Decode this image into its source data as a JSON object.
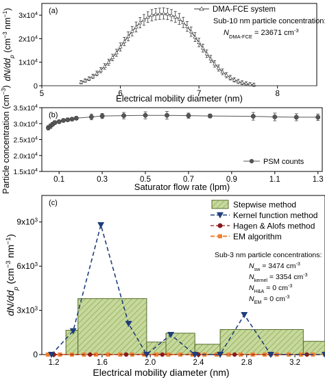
{
  "chart_data": [
    {
      "type": "line",
      "panel_label": "(a)",
      "xlabel": "Electrical mobility diameter (nm)",
      "ylabel_main": "dN/dd",
      "ylabel_sub": "p",
      "ylabel_unit": " (cm",
      "ylabel_unit_sup1": "−3",
      "ylabel_unit_mid": " nm",
      "ylabel_unit_sup2": "−1",
      "ylabel_unit_end": ")",
      "xlim": [
        5,
        8.5
      ],
      "ylim": [
        0,
        35000
      ],
      "xticks": [
        5,
        6,
        7,
        8
      ],
      "ytick_labels": [
        {
          "v": 0,
          "base": "0",
          "exp": ""
        },
        {
          "v": 10000,
          "base": "1x10",
          "exp": "4"
        },
        {
          "v": 20000,
          "base": "2x10",
          "exp": "4"
        },
        {
          "v": 30000,
          "base": "3x10",
          "exp": "4"
        }
      ],
      "legend": "DMA-FCE system",
      "annotation_line1": "Sub-10 nm particle concentration:",
      "annotation_var": "N",
      "annotation_sub": "DMA-FCE",
      "annotation_value": " = 23671 cm",
      "annotation_sup": "-3",
      "series": [
        {
          "name": "DMA-FCE system",
          "x": [
            5.5,
            5.55,
            5.6,
            5.65,
            5.7,
            5.75,
            5.8,
            5.85,
            5.9,
            5.95,
            6.0,
            6.05,
            6.1,
            6.15,
            6.2,
            6.25,
            6.3,
            6.35,
            6.4,
            6.45,
            6.5,
            6.55,
            6.6,
            6.65,
            6.7,
            6.75,
            6.8,
            6.85,
            6.9,
            6.95,
            7.0,
            7.05,
            7.1,
            7.15,
            7.2,
            7.25,
            7.3,
            7.35,
            7.4,
            7.45,
            7.5,
            7.55,
            7.6,
            7.65,
            7.7
          ],
          "y": [
            1500,
            2200,
            3000,
            4000,
            5200,
            6600,
            8200,
            10000,
            12000,
            14000,
            16500,
            18800,
            21000,
            23200,
            25000,
            26800,
            28000,
            29200,
            30000,
            30400,
            30600,
            30700,
            30500,
            30000,
            29300,
            28400,
            26900,
            25200,
            23000,
            20700,
            18400,
            16000,
            13600,
            11400,
            9300,
            7500,
            5900,
            4500,
            3400,
            2500,
            1800,
            1300,
            900,
            600,
            400
          ],
          "err": [
            700,
            700,
            800,
            900,
            1000,
            1100,
            1200,
            1300,
            1400,
            1500,
            1700,
            1800,
            1900,
            2000,
            2100,
            2200,
            2300,
            2300,
            2400,
            2400,
            2400,
            2400,
            2400,
            2400,
            2300,
            2300,
            2200,
            2100,
            2000,
            1900,
            1800,
            1700,
            1600,
            1500,
            1400,
            1300,
            1200,
            1100,
            1000,
            900,
            900,
            800,
            800,
            700,
            700
          ]
        }
      ]
    },
    {
      "type": "line",
      "panel_label": "(b)",
      "xlabel": "Saturator flow rate (lpm)",
      "ylabel": "Particle concentration (cm",
      "ylabel_sup": "−3",
      "ylabel_end": ")",
      "xlim": [
        0.02,
        1.32
      ],
      "ylim": [
        15000,
        35000
      ],
      "xticks": [
        0.1,
        0.3,
        0.5,
        0.7,
        0.9,
        1.1,
        1.3
      ],
      "ytick_labels": [
        {
          "v": 15000,
          "base": "1.5x10",
          "exp": "4"
        },
        {
          "v": 20000,
          "base": "2.0x10",
          "exp": "4"
        },
        {
          "v": 25000,
          "base": "2.5x10",
          "exp": "4"
        },
        {
          "v": 30000,
          "base": "3.0x10",
          "exp": "4"
        },
        {
          "v": 35000,
          "base": "3.5x10",
          "exp": "4"
        }
      ],
      "legend": "PSM counts",
      "series": [
        {
          "name": "PSM counts",
          "x": [
            0.05,
            0.06,
            0.07,
            0.08,
            0.1,
            0.12,
            0.14,
            0.16,
            0.18,
            0.25,
            0.3,
            0.4,
            0.5,
            0.6,
            0.7,
            0.8,
            1.0,
            1.1,
            1.2,
            1.3
          ],
          "y": [
            28700,
            29200,
            29800,
            30300,
            30600,
            31000,
            31200,
            31400,
            31700,
            32100,
            32400,
            32500,
            32600,
            32600,
            32500,
            32400,
            32300,
            32100,
            32000,
            32000
          ],
          "err": [
            700,
            700,
            600,
            600,
            500,
            500,
            500,
            500,
            500,
            900,
            800,
            1000,
            1100,
            1200,
            800,
            600,
            1200,
            1200,
            1100,
            1000
          ]
        }
      ]
    },
    {
      "type": "bar",
      "panel_label": "(c)",
      "xlabel": "Electrical mobility diameter (nm)",
      "ylabel_main": "dN/dd",
      "ylabel_sub": "p",
      "ylabel_unit": " (cm",
      "ylabel_unit_sup1": "−3",
      "ylabel_unit_mid": " nm",
      "ylabel_unit_sup2": "−1",
      "ylabel_unit_end": ")",
      "xlim": [
        1.1,
        3.45
      ],
      "ylim": [
        0,
        10800
      ],
      "xticks": [
        1.2,
        1.6,
        2.0,
        2.4,
        2.8,
        3.2
      ],
      "xtick_labels": [
        "1.2",
        "1.6",
        "2.0",
        "2.4",
        "2.8",
        "3.2"
      ],
      "ytick_labels": [
        {
          "v": 0,
          "base": "0",
          "exp": ""
        },
        {
          "v": 3000,
          "base": "3x10",
          "exp": "3"
        },
        {
          "v": 6000,
          "base": "6x10",
          "exp": "3"
        },
        {
          "v": 9000,
          "base": "9x10",
          "exp": "3"
        }
      ],
      "legend": [
        {
          "name": "Stepwise method",
          "style": "bar"
        },
        {
          "name": "Kernel function method",
          "style": "kernel"
        },
        {
          "name": "Hagen & Alofs method",
          "style": "hagen"
        },
        {
          "name": "EM algorithm",
          "style": "em"
        }
      ],
      "annotations": {
        "line1": "Sub-3 nm particle concentrations:",
        "rows": [
          {
            "var": "N",
            "sub": "sw",
            "value": " = 3474 cm",
            "sup": "-3"
          },
          {
            "var": "N",
            "sub": "kernel",
            "value": " = 3354 cm",
            "sup": "-3"
          },
          {
            "var": "N",
            "sub": "H&A",
            "value": " = 0 cm",
            "sup": "-3"
          },
          {
            "var": "N",
            "sub": "EM",
            "value": " = 0 cm",
            "sup": "-3"
          }
        ]
      },
      "stepwise_bars": [
        {
          "x0": 1.3,
          "x1": 1.4,
          "value": 1650
        },
        {
          "x0": 1.4,
          "x1": 1.97,
          "value": 3800
        },
        {
          "x0": 1.97,
          "x1": 2.13,
          "value": 850
        },
        {
          "x0": 2.13,
          "x1": 2.37,
          "value": 1450
        },
        {
          "x0": 2.37,
          "x1": 2.58,
          "value": 700
        },
        {
          "x0": 2.58,
          "x1": 3.27,
          "value": 1700
        },
        {
          "x0": 3.27,
          "x1": 3.45,
          "value": 900
        }
      ],
      "series": [
        {
          "name": "Kernel function method",
          "x": [
            1.18,
            1.36,
            1.59,
            1.82,
            1.97,
            2.17,
            2.37,
            2.58,
            2.78,
            3.0,
            3.45
          ],
          "y": [
            0,
            1600,
            8800,
            2100,
            0,
            1350,
            0,
            0,
            2700,
            0,
            0
          ]
        },
        {
          "name": "Hagen & Alofs method",
          "x": [
            1.2,
            1.5,
            1.8,
            2.1,
            2.4,
            2.7,
            3.0,
            3.3
          ],
          "y": [
            0,
            0,
            0,
            0,
            0,
            0,
            0,
            0
          ]
        },
        {
          "name": "EM algorithm",
          "x": [
            1.15,
            1.25,
            1.35,
            1.45,
            1.55,
            1.65,
            1.75,
            1.85,
            1.95,
            2.05,
            2.15,
            2.25,
            2.35,
            2.45,
            2.55,
            2.65,
            2.75,
            2.85,
            2.95,
            3.05,
            3.15,
            3.25,
            3.35,
            3.45
          ],
          "y": [
            0,
            0,
            0,
            0,
            0,
            0,
            0,
            0,
            0,
            0,
            0,
            0,
            0,
            0,
            0,
            0,
            0,
            0,
            0,
            0,
            0,
            0,
            0,
            0
          ]
        }
      ],
      "colors": {
        "bar_fill": "#c6d99a",
        "bar_stroke": "#556b2f",
        "kernel": "#1f3d7a",
        "hagen": "#8b1a1a",
        "em": "#f08030"
      }
    }
  ]
}
